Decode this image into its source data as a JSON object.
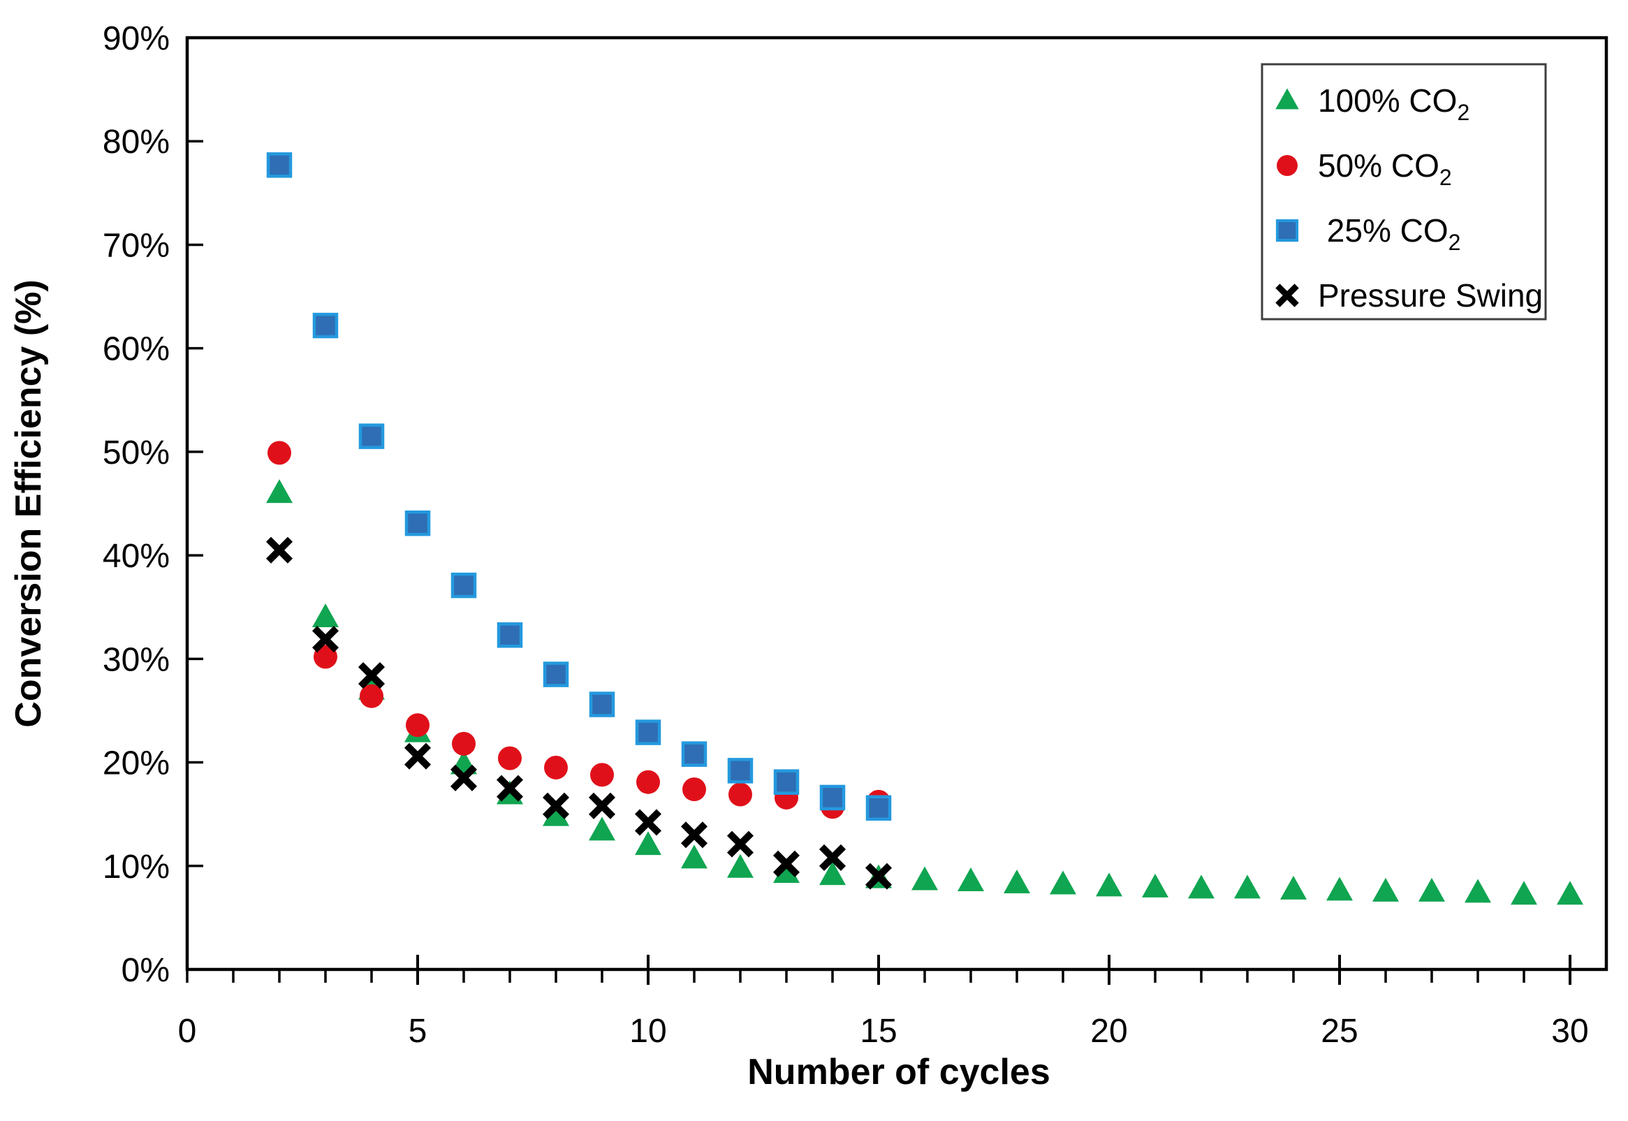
{
  "chart_data": {
    "type": "scatter",
    "title": "",
    "xlabel": "Number of cycles",
    "ylabel": "Conversion Efficiency (%)",
    "grid": false,
    "legend_position": "top-right",
    "legend_border_color": "#3f3f3f",
    "axes": {
      "xlim": [
        0,
        31
      ],
      "ylim_percent": [
        0,
        90
      ],
      "x_major_tick_step": 5,
      "x_minor_tick_step": 1,
      "x_ticks": [
        {
          "v": 0,
          "label": "0"
        },
        {
          "v": 5,
          "label": "5"
        },
        {
          "v": 10,
          "label": "10"
        },
        {
          "v": 15,
          "label": "15"
        },
        {
          "v": 20,
          "label": "20"
        },
        {
          "v": 25,
          "label": "25"
        },
        {
          "v": 30,
          "label": "30"
        }
      ],
      "y_ticks": [
        {
          "v": 0,
          "label": "0%"
        },
        {
          "v": 10,
          "label": "10%"
        },
        {
          "v": 20,
          "label": "20%"
        },
        {
          "v": 30,
          "label": "30%"
        },
        {
          "v": 40,
          "label": "40%"
        },
        {
          "v": 50,
          "label": "50%"
        },
        {
          "v": 60,
          "label": "60%"
        },
        {
          "v": 70,
          "label": "70%"
        },
        {
          "v": 80,
          "label": "80%"
        },
        {
          "v": 90,
          "label": "90%"
        }
      ]
    },
    "series": [
      {
        "id": "100-co2",
        "name_main": "100% CO",
        "name_sub": "2",
        "marker": "triangle",
        "color": "#10a551",
        "points": [
          [
            2,
            46.0
          ],
          [
            3,
            34.0
          ],
          [
            4,
            27.0
          ],
          [
            5,
            22.9
          ],
          [
            6,
            19.8
          ],
          [
            7,
            16.9
          ],
          [
            8,
            14.8
          ],
          [
            9,
            13.4
          ],
          [
            10,
            12.0
          ],
          [
            11,
            10.7
          ],
          [
            12,
            9.8
          ],
          [
            13,
            9.3
          ],
          [
            14,
            9.1
          ],
          [
            15,
            8.8
          ],
          [
            16,
            8.6
          ],
          [
            17,
            8.5
          ],
          [
            18,
            8.3
          ],
          [
            19,
            8.2
          ],
          [
            20,
            8.0
          ],
          [
            21,
            7.9
          ],
          [
            22,
            7.8
          ],
          [
            23,
            7.8
          ],
          [
            24,
            7.7
          ],
          [
            25,
            7.6
          ],
          [
            26,
            7.5
          ],
          [
            27,
            7.5
          ],
          [
            28,
            7.4
          ],
          [
            29,
            7.2
          ],
          [
            30,
            7.2
          ]
        ]
      },
      {
        "id": "50-co2",
        "name_main": "50% CO",
        "name_sub": "2",
        "marker": "circle",
        "color": "#e0101a",
        "points": [
          [
            2,
            49.9
          ],
          [
            3,
            30.2
          ],
          [
            4,
            26.4
          ],
          [
            5,
            23.6
          ],
          [
            6,
            21.8
          ],
          [
            7,
            20.4
          ],
          [
            8,
            19.5
          ],
          [
            9,
            18.8
          ],
          [
            10,
            18.1
          ],
          [
            11,
            17.4
          ],
          [
            12,
            16.9
          ],
          [
            13,
            16.6
          ],
          [
            14,
            15.7
          ],
          [
            15,
            16.2
          ]
        ]
      },
      {
        "id": "25-co2",
        "name_main": " 25% CO",
        "name_sub": "2",
        "marker": "square",
        "color": "#2f6eb4",
        "marker_stroke": "#2499de",
        "points": [
          [
            2,
            77.7
          ],
          [
            3,
            62.2
          ],
          [
            4,
            51.5
          ],
          [
            5,
            43.1
          ],
          [
            6,
            37.1
          ],
          [
            7,
            32.3
          ],
          [
            8,
            28.5
          ],
          [
            9,
            25.6
          ],
          [
            10,
            22.9
          ],
          [
            11,
            20.8
          ],
          [
            12,
            19.2
          ],
          [
            13,
            18.1
          ],
          [
            14,
            16.6
          ],
          [
            15,
            15.6
          ]
        ]
      },
      {
        "id": "pressure-swing",
        "name_main": "Pressure Swing",
        "name_sub": "",
        "marker": "x",
        "color": "#000000",
        "points": [
          [
            2,
            40.5
          ],
          [
            3,
            31.9
          ],
          [
            4,
            28.4
          ],
          [
            5,
            20.6
          ],
          [
            6,
            18.5
          ],
          [
            7,
            17.5
          ],
          [
            8,
            15.8
          ],
          [
            9,
            15.8
          ],
          [
            10,
            14.2
          ],
          [
            11,
            13.0
          ],
          [
            12,
            12.1
          ],
          [
            13,
            10.2
          ],
          [
            14,
            10.8
          ],
          [
            15,
            9.0
          ]
        ]
      }
    ]
  }
}
